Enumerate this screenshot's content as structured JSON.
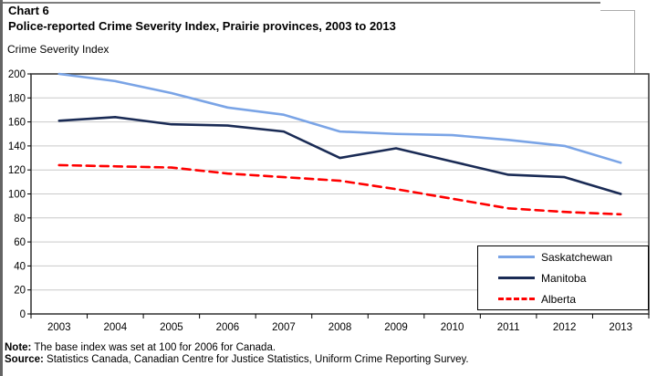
{
  "header": {
    "chart_label": "Chart 6",
    "title": "Police-reported Crime Severity Index, Prairie provinces, 2003 to 2013",
    "axis_title": "Crime Severity Index"
  },
  "chart_data": {
    "type": "line",
    "x": [
      2003,
      2004,
      2005,
      2006,
      2007,
      2008,
      2009,
      2010,
      2011,
      2012,
      2013
    ],
    "series": [
      {
        "name": "Saskatchewan",
        "color": "#7AA4E6",
        "line_style": "solid",
        "values": [
          200,
          194,
          184,
          172,
          166,
          152,
          150,
          149,
          145,
          140,
          126
        ]
      },
      {
        "name": "Manitoba",
        "color": "#1A2B55",
        "line_style": "solid",
        "values": [
          161,
          164,
          158,
          157,
          152,
          130,
          138,
          127,
          116,
          114,
          100
        ]
      },
      {
        "name": "Alberta",
        "color": "#FF0000",
        "line_style": "dashed",
        "values": [
          124,
          123,
          122,
          117,
          114,
          111,
          104,
          96,
          88,
          85,
          83
        ]
      }
    ],
    "ylim": [
      0,
      200
    ],
    "yticks": [
      0,
      20,
      40,
      60,
      80,
      100,
      120,
      140,
      160,
      180,
      200
    ],
    "grid": true,
    "legend_position": "bottom-right",
    "gridline_color": "#c9c9c9",
    "plot_border_color": "#3c3c3c",
    "axis_color": "#000000",
    "tick_label_color": "#000000"
  },
  "footer": {
    "note_label": "Note:",
    "note_text": " The base index was set at 100 for 2006 for Canada.",
    "source_label": "Source:",
    "source_text": " Statistics Canada, Canadian Centre for Justice Statistics, Uniform Crime Reporting Survey."
  }
}
